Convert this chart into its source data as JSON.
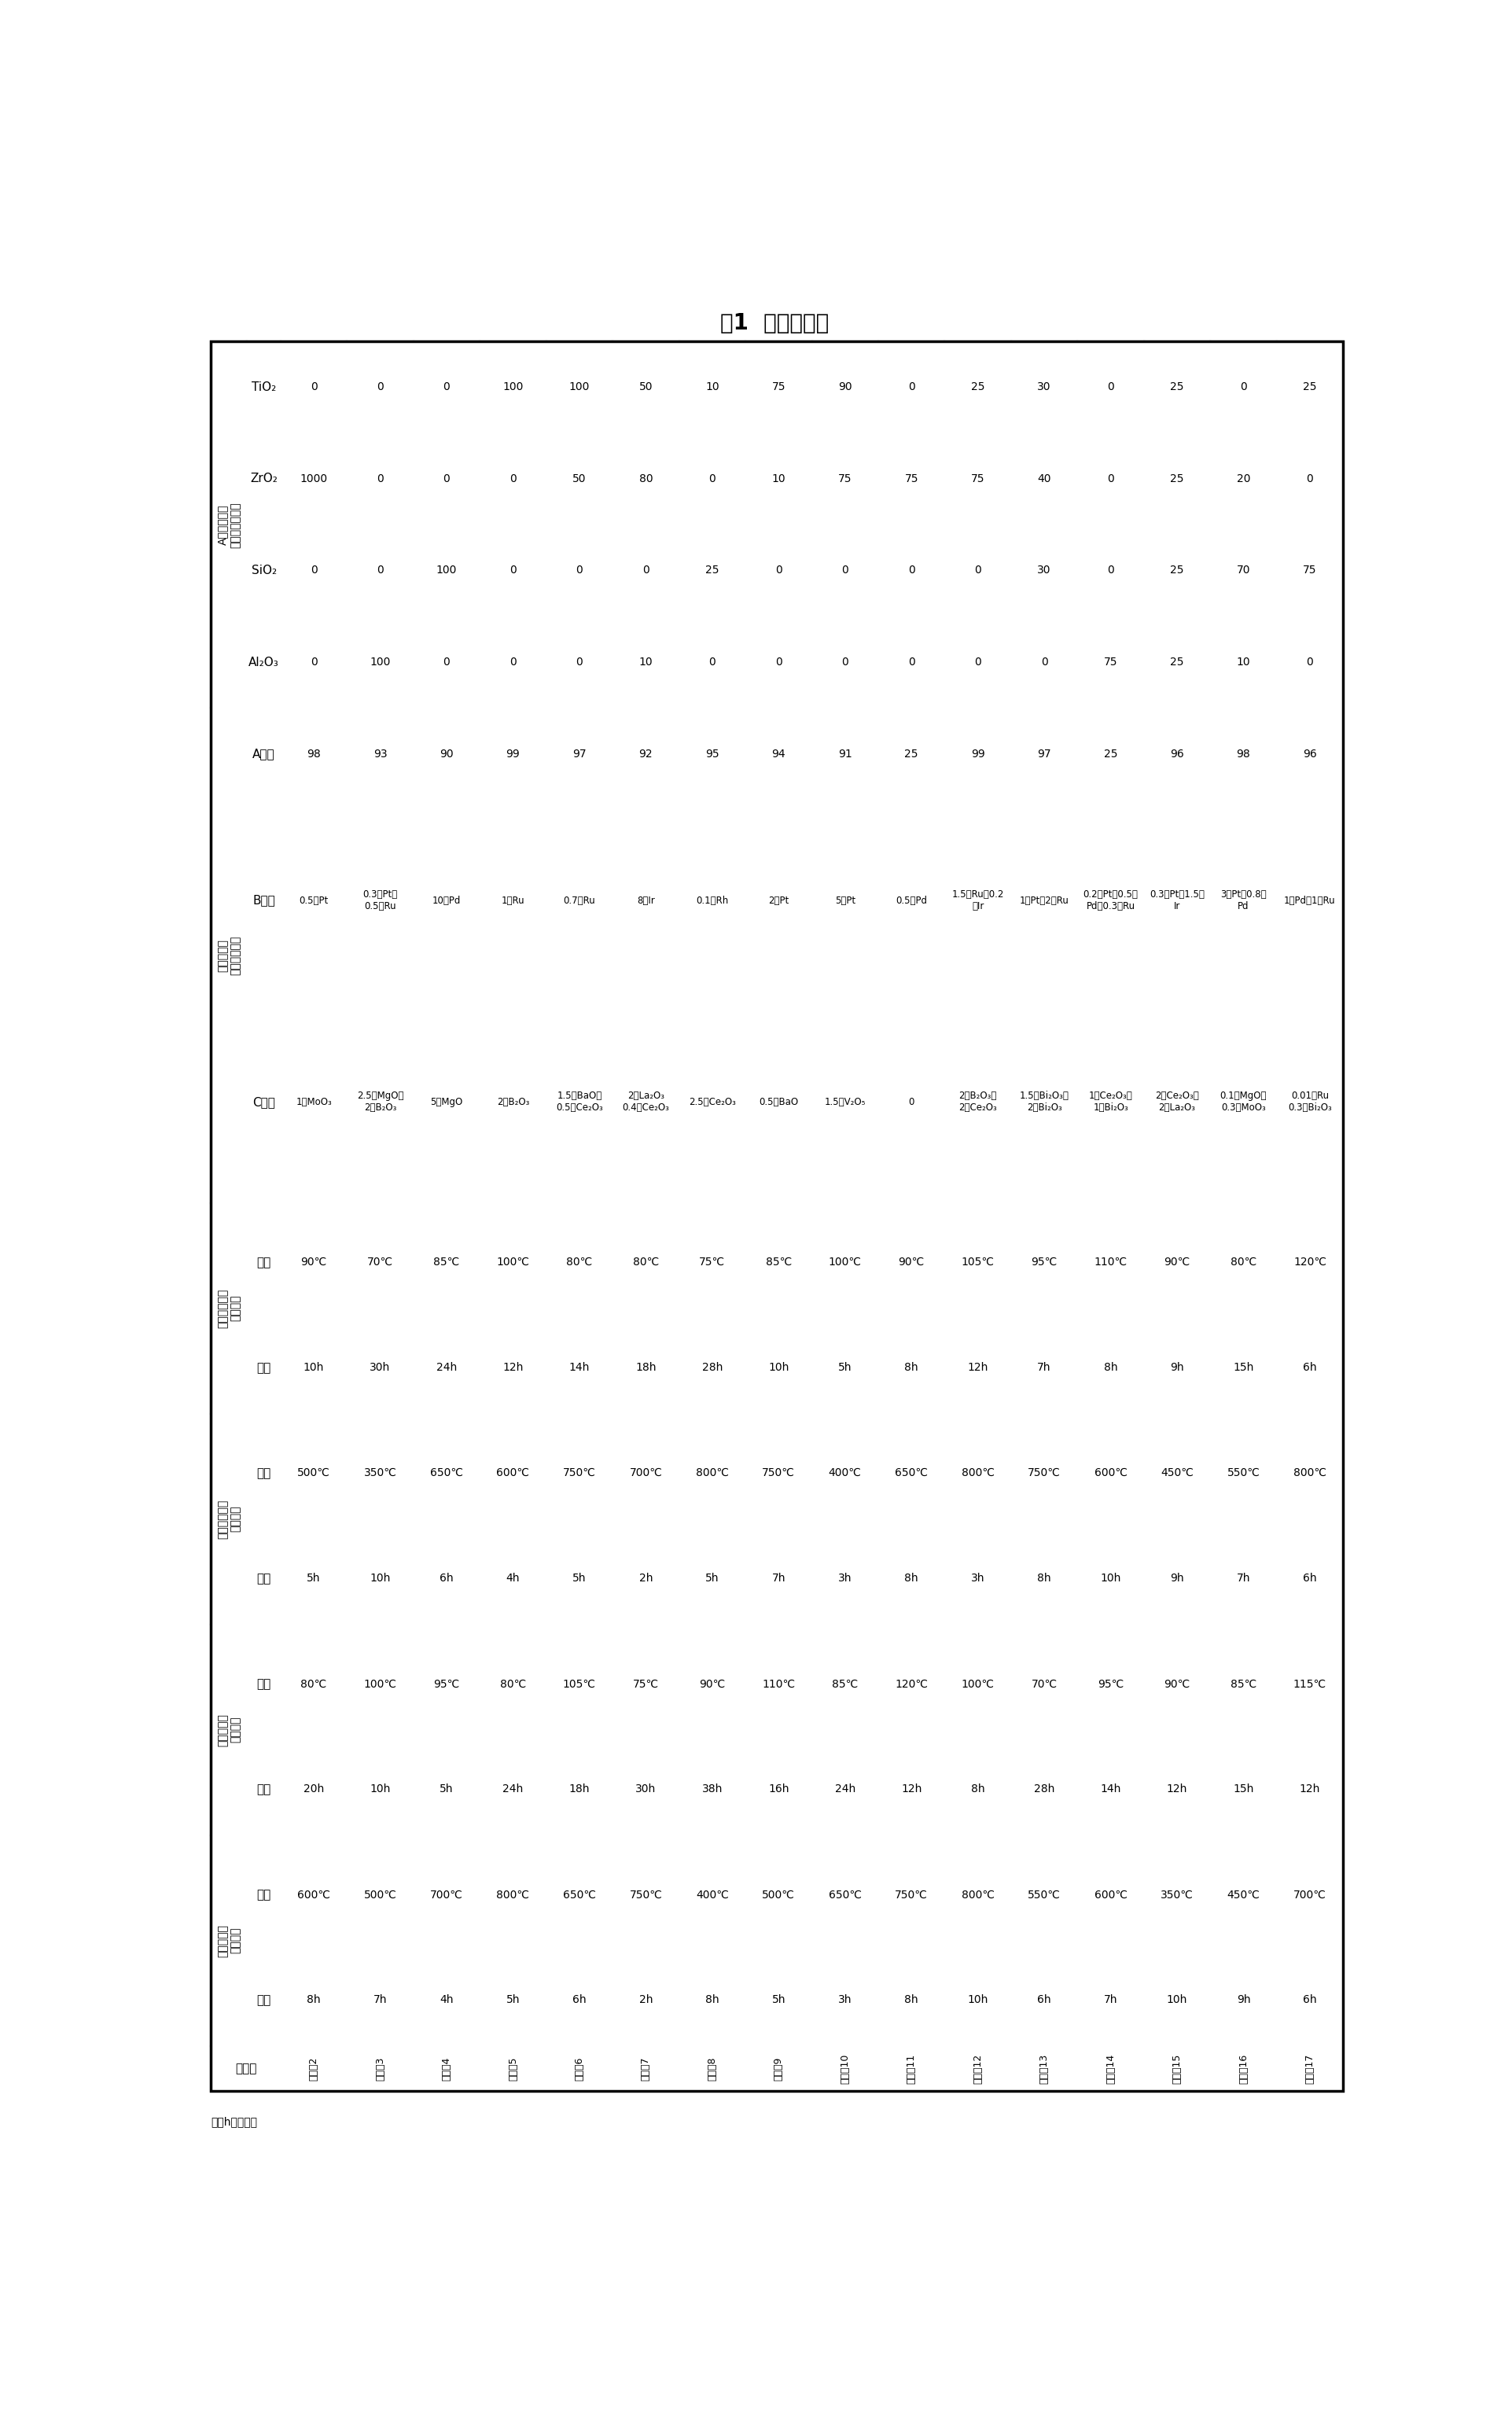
{
  "title": "表1  催化剂制备",
  "note": "注：h为小时。",
  "row_groups": [
    {
      "label": "A组分的组成（重量百分比）",
      "rows": [
        "TiO₂",
        "ZrO₂",
        "SiO₂",
        "Al₂O₃"
      ]
    },
    {
      "label": "催化剂组成（重量份数）",
      "rows": [
        "A组分",
        "B组分",
        "C组分"
      ]
    },
    {
      "label": "催化剂前驱体干燥条件",
      "rows": [
        "温度",
        "时间"
      ]
    },
    {
      "label": "催化剂前驱体焙烧条件",
      "rows": [
        "温度",
        "时间"
      ]
    },
    {
      "label": "催化剂成品干燥条件",
      "rows": [
        "温度",
        "时间"
      ]
    },
    {
      "label": "催化剂成品焙烧条件",
      "rows": [
        "温度",
        "时间"
      ]
    }
  ],
  "examples": [
    "实施例2",
    "实施例3",
    "实施例4",
    "实施例5",
    "实施例6",
    "实施例7",
    "实施例8",
    "实施例9",
    "实施例10",
    "实施例11",
    "实施例12",
    "实施例13",
    "实施例14",
    "实施例15",
    "实施例16",
    "实施例17"
  ],
  "data": {
    "TiO₂": [
      "0",
      "0",
      "0",
      "100",
      "100",
      "50",
      "10",
      "75",
      "90",
      "0",
      "25",
      "30",
      "0",
      "25",
      "0",
      "25"
    ],
    "ZrO₂": [
      "1000",
      "0",
      "0",
      "0",
      "50",
      "80",
      "0",
      "10",
      "75",
      "75",
      "75",
      "40",
      "0",
      "25",
      "20",
      "0"
    ],
    "SiO₂": [
      "0",
      "0",
      "100",
      "0",
      "0",
      "0",
      "25",
      "0",
      "0",
      "0",
      "0",
      "30",
      "0",
      "25",
      "70",
      "75"
    ],
    "Al₂O₃": [
      "0",
      "100",
      "0",
      "0",
      "0",
      "10",
      "0",
      "0",
      "0",
      "0",
      "0",
      "0",
      "75",
      "25",
      "10",
      "0"
    ],
    "A组分": [
      "98",
      "93",
      "90",
      "99",
      "97",
      "92",
      "95",
      "94",
      "91",
      "25",
      "99",
      "97",
      "25",
      "96",
      "98",
      "96"
    ],
    "B组分": [
      "0.5份Pt",
      "0.3份Pt和\n0.5份Ru",
      "10份Pd",
      "1份Ru",
      "0.7份Ru",
      "8份Ir",
      "0.1份Rh",
      "2份Pt",
      "5份Pt",
      "0.5份Pd",
      "1.5份Ru和0.2\n份Ir",
      "1份Pt和2份Ru",
      "0.2份Pt、0.5份\nPd和0.3份Ru",
      "0.3份Pt和1.5份\nIr",
      "3份Pt和0.8份\nPd",
      "1份Pd和1份Ru"
    ],
    "C组分": [
      "1份MoO₃",
      "2.5份MgO和\n2份B₂O₃",
      "5份MgO",
      "2份B₂O₃",
      "1.5份BaO和\n0.5份Ce₂O₃",
      "2份La₂O₃\n0.4份Ce₂O₃",
      "2.5份Ce₂O₃",
      "0.5份BaO",
      "1.5份V₂O₅",
      "0",
      "2份B₂O₃和\n2份Ce₂O₃",
      "1.5份Bi₂O₃和\n2份Bi₂O₃",
      "1份Ce₂O₃和\n1份Bi₂O₃",
      "2份Ce₂O₃和\n2份La₂O₃",
      "0.1份MgO和\n0.3份MoO₃",
      "0.01份Ru\n0.3份Bi₂O₃"
    ],
    "温度_干1": [
      "90℃",
      "70℃",
      "85℃",
      "100℃",
      "80℃",
      "80℃",
      "75℃",
      "85℃",
      "100℃",
      "90℃",
      "105℃",
      "95℃",
      "110℃",
      "90℃",
      "80℃",
      "120℃"
    ],
    "时间_干1": [
      "10h",
      "30h",
      "24h",
      "12h",
      "14h",
      "18h",
      "28h",
      "10h",
      "5h",
      "8h",
      "12h",
      "7h",
      "8h",
      "9h",
      "15h",
      "6h"
    ],
    "温度_焙1": [
      "500℃",
      "350℃",
      "650℃",
      "600℃",
      "750℃",
      "700℃",
      "800℃",
      "750℃",
      "400℃",
      "650℃",
      "800℃",
      "750℃",
      "600℃",
      "450℃",
      "550℃",
      "800℃"
    ],
    "时间_焙1": [
      "5h",
      "10h",
      "6h",
      "4h",
      "5h",
      "2h",
      "5h",
      "7h",
      "3h",
      "8h",
      "3h",
      "8h",
      "10h",
      "9h",
      "7h",
      "6h"
    ],
    "温度_干2": [
      "80℃",
      "100℃",
      "95℃",
      "80℃",
      "105℃",
      "75℃",
      "90℃",
      "110℃",
      "85℃",
      "120℃",
      "100℃",
      "70℃",
      "95℃",
      "90℃",
      "85℃",
      "115℃"
    ],
    "时间_干2": [
      "20h",
      "10h",
      "5h",
      "24h",
      "18h",
      "30h",
      "38h",
      "16h",
      "24h",
      "12h",
      "8h",
      "28h",
      "14h",
      "12h",
      "15h",
      "12h"
    ],
    "温度_焙2": [
      "600℃",
      "500℃",
      "700℃",
      "800℃",
      "650℃",
      "750℃",
      "400℃",
      "500℃",
      "650℃",
      "750℃",
      "800℃",
      "550℃",
      "600℃",
      "350℃",
      "450℃",
      "700℃"
    ],
    "时间_焙2": [
      "8h",
      "7h",
      "4h",
      "5h",
      "6h",
      "2h",
      "8h",
      "5h",
      "3h",
      "8h",
      "10h",
      "6h",
      "7h",
      "10h",
      "9h",
      "6h"
    ]
  }
}
